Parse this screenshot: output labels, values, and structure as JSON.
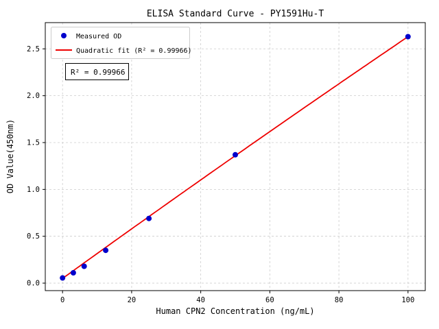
{
  "chart_data": {
    "type": "scatter",
    "title": "ELISA Standard Curve - PY1591Hu-T",
    "xlabel": "Human CPN2 Concentration (ng/mL)",
    "ylabel": "OD Value(450nm)",
    "x": [
      0,
      3.125,
      6.25,
      12.5,
      25,
      50,
      100
    ],
    "y": [
      0.055,
      0.11,
      0.18,
      0.35,
      0.69,
      1.37,
      2.63
    ],
    "fit": {
      "kind": "quadratic",
      "a": 0.05,
      "b": 0.0266,
      "c": -8e-06,
      "range": [
        0,
        100
      ]
    },
    "xlim": [
      -5,
      105
    ],
    "ylim": [
      -0.08,
      2.78
    ],
    "xticks": [
      0,
      20,
      40,
      60,
      80,
      100
    ],
    "xtick_labels": [
      "0",
      "20",
      "40",
      "60",
      "80",
      "100"
    ],
    "yticks": [
      0.0,
      0.5,
      1.0,
      1.5,
      2.0,
      2.5
    ],
    "ytick_labels": [
      "0.0",
      "0.5",
      "1.0",
      "1.5",
      "2.0",
      "2.5"
    ],
    "grid": true,
    "legend": {
      "position": "upper left",
      "entries": [
        {
          "label": "Measured OD",
          "marker": "dot"
        },
        {
          "label": "Quadratic fit (R² = 0.99966)",
          "marker": "line"
        }
      ]
    },
    "annotation": "R² = 0.99966",
    "colors": {
      "points": "#0000cc",
      "fit_line": "#ee0000",
      "grid": "#cccccc"
    }
  }
}
